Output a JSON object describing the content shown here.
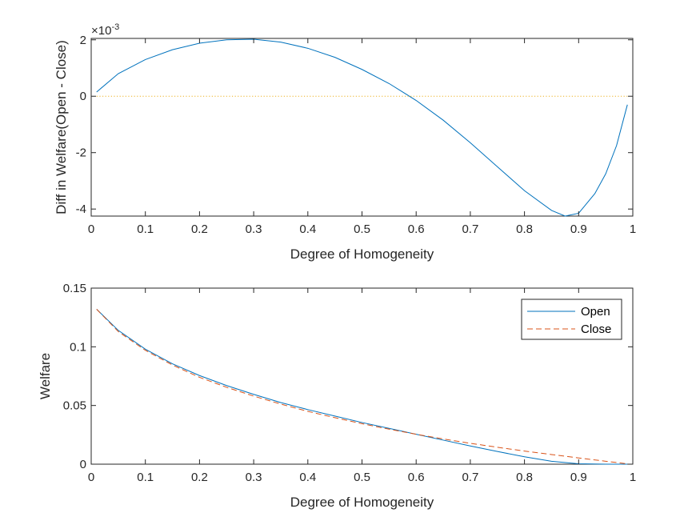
{
  "colors": {
    "open": "#0072bd",
    "close": "#d95319",
    "zero_line": "#edb120",
    "axes": "#262626",
    "background": "#ffffff"
  },
  "chart_data": [
    {
      "type": "line",
      "title": "",
      "xlabel": "Degree of Homogeneity",
      "ylabel": "Diff in Welfare(Open - Close)",
      "y_exponent_label": "×10",
      "y_exponent_power": "-3",
      "xlim": [
        0,
        1
      ],
      "ylim": [
        -4.25,
        2.05
      ],
      "x_ticks": [
        0,
        0.1,
        0.2,
        0.3,
        0.4,
        0.5,
        0.6,
        0.7,
        0.8,
        0.9,
        1
      ],
      "x_tick_labels": [
        "0",
        "0.1",
        "0.2",
        "0.3",
        "0.4",
        "0.5",
        "0.6",
        "0.7",
        "0.8",
        "0.9",
        "1"
      ],
      "y_ticks": [
        -4,
        -2,
        0,
        2
      ],
      "y_tick_labels": [
        "-4",
        "-2",
        "0",
        "2"
      ],
      "grid": false,
      "series": [
        {
          "style": "solid",
          "color": "#0072bd",
          "x": [
            0.01,
            0.05,
            0.1,
            0.15,
            0.2,
            0.25,
            0.3,
            0.35,
            0.4,
            0.45,
            0.5,
            0.55,
            0.6,
            0.65,
            0.7,
            0.75,
            0.8,
            0.85,
            0.875,
            0.9,
            0.93,
            0.95,
            0.97,
            0.99
          ],
          "y": [
            0.15,
            0.8,
            1.3,
            1.65,
            1.88,
            2.0,
            2.02,
            1.92,
            1.7,
            1.38,
            0.95,
            0.45,
            -0.15,
            -0.85,
            -1.65,
            -2.5,
            -3.35,
            -4.05,
            -4.25,
            -4.15,
            -3.45,
            -2.75,
            -1.75,
            -0.3
          ]
        },
        {
          "style": "dotted",
          "color": "#edb120",
          "x": [
            0.01,
            0.99
          ],
          "y": [
            0,
            0
          ]
        }
      ]
    },
    {
      "type": "line",
      "title": "",
      "xlabel": "Degree of Homogeneity",
      "ylabel": "Welfare",
      "xlim": [
        0,
        1
      ],
      "ylim": [
        0,
        0.15
      ],
      "x_ticks": [
        0,
        0.1,
        0.2,
        0.3,
        0.4,
        0.5,
        0.6,
        0.7,
        0.8,
        0.9,
        1
      ],
      "x_tick_labels": [
        "0",
        "0.1",
        "0.2",
        "0.3",
        "0.4",
        "0.5",
        "0.6",
        "0.7",
        "0.8",
        "0.9",
        "1"
      ],
      "y_ticks": [
        0,
        0.05,
        0.1,
        0.15
      ],
      "y_tick_labels": [
        "0",
        "0.05",
        "0.1",
        "0.15"
      ],
      "grid": false,
      "legend_position": "top-right",
      "series": [
        {
          "name": "Open",
          "style": "solid",
          "color": "#0072bd",
          "x": [
            0.01,
            0.05,
            0.1,
            0.15,
            0.2,
            0.25,
            0.3,
            0.35,
            0.4,
            0.45,
            0.5,
            0.55,
            0.6,
            0.65,
            0.7,
            0.75,
            0.8,
            0.85,
            0.9,
            0.95,
            0.99
          ],
          "y": [
            0.132,
            0.114,
            0.098,
            0.0855,
            0.0755,
            0.067,
            0.0595,
            0.0525,
            0.0465,
            0.041,
            0.0355,
            0.0305,
            0.0255,
            0.0205,
            0.0155,
            0.0108,
            0.0063,
            0.0025,
            0.0003,
            0.0,
            0.0
          ]
        },
        {
          "name": "Close",
          "style": "dashed",
          "color": "#d95319",
          "x": [
            0.01,
            0.05,
            0.1,
            0.15,
            0.2,
            0.25,
            0.3,
            0.35,
            0.4,
            0.45,
            0.5,
            0.55,
            0.6,
            0.65,
            0.7,
            0.75,
            0.8,
            0.85,
            0.9,
            0.95,
            0.99
          ],
          "y": [
            0.132,
            0.113,
            0.097,
            0.0845,
            0.074,
            0.0655,
            0.058,
            0.0512,
            0.045,
            0.0396,
            0.0345,
            0.0298,
            0.0255,
            0.0215,
            0.0178,
            0.0144,
            0.0112,
            0.0082,
            0.0053,
            0.0025,
            0.0003
          ]
        }
      ]
    }
  ]
}
